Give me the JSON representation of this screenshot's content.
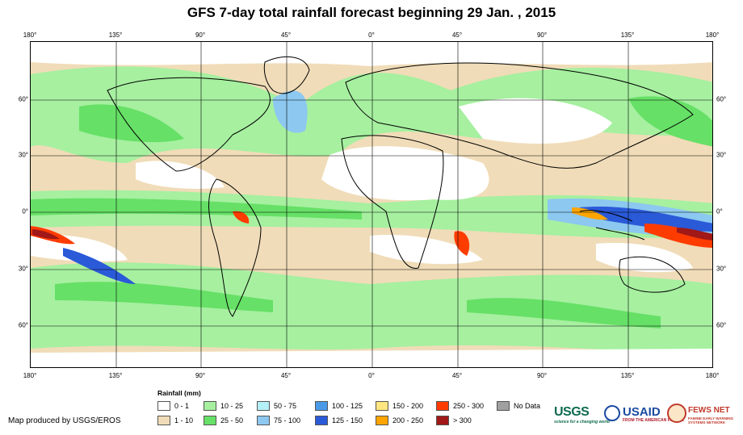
{
  "title": "GFS 7-day total rainfall forecast beginning 29 Jan. , 2015",
  "lon_ticks": [
    "180°",
    "135°",
    "90°",
    "45°",
    "0°",
    "45°",
    "90°",
    "135°",
    "180°"
  ],
  "lat_ticks": [
    "60°",
    "30°",
    "0°",
    "30°",
    "60°"
  ],
  "legend": {
    "title": "Rainfall (mm)",
    "items": [
      {
        "label": "0 - 1",
        "color": "#ffffff"
      },
      {
        "label": "1 - 10",
        "color": "#f0dcb8"
      },
      {
        "label": "10 - 25",
        "color": "#a6f0a0"
      },
      {
        "label": "25 - 50",
        "color": "#66e066"
      },
      {
        "label": "50 - 75",
        "color": "#b4f0f8"
      },
      {
        "label": "75 - 100",
        "color": "#8cc8f0"
      },
      {
        "label": "100 - 125",
        "color": "#4a9ae8"
      },
      {
        "label": "125 - 150",
        "color": "#2a5ad8"
      },
      {
        "label": "150 - 200",
        "color": "#ffe680"
      },
      {
        "label": "200 - 250",
        "color": "#ffa500"
      },
      {
        "label": "250 - 300",
        "color": "#ff3c00"
      },
      {
        "label": "> 300",
        "color": "#a01818"
      },
      {
        "label": "No Data",
        "color": "#a0a0a0"
      }
    ]
  },
  "credit": "Map produced by USGS/EROS",
  "logos": {
    "usgs": "USGS",
    "usgs_tagline": "science for a changing world",
    "usaid": "USAID",
    "usaid_tagline": "FROM THE AMERICAN PEOPLE",
    "fews": "FEWS NET",
    "fews_tagline": "FAMINE EARLY WARNING SYSTEMS NETWORK"
  }
}
